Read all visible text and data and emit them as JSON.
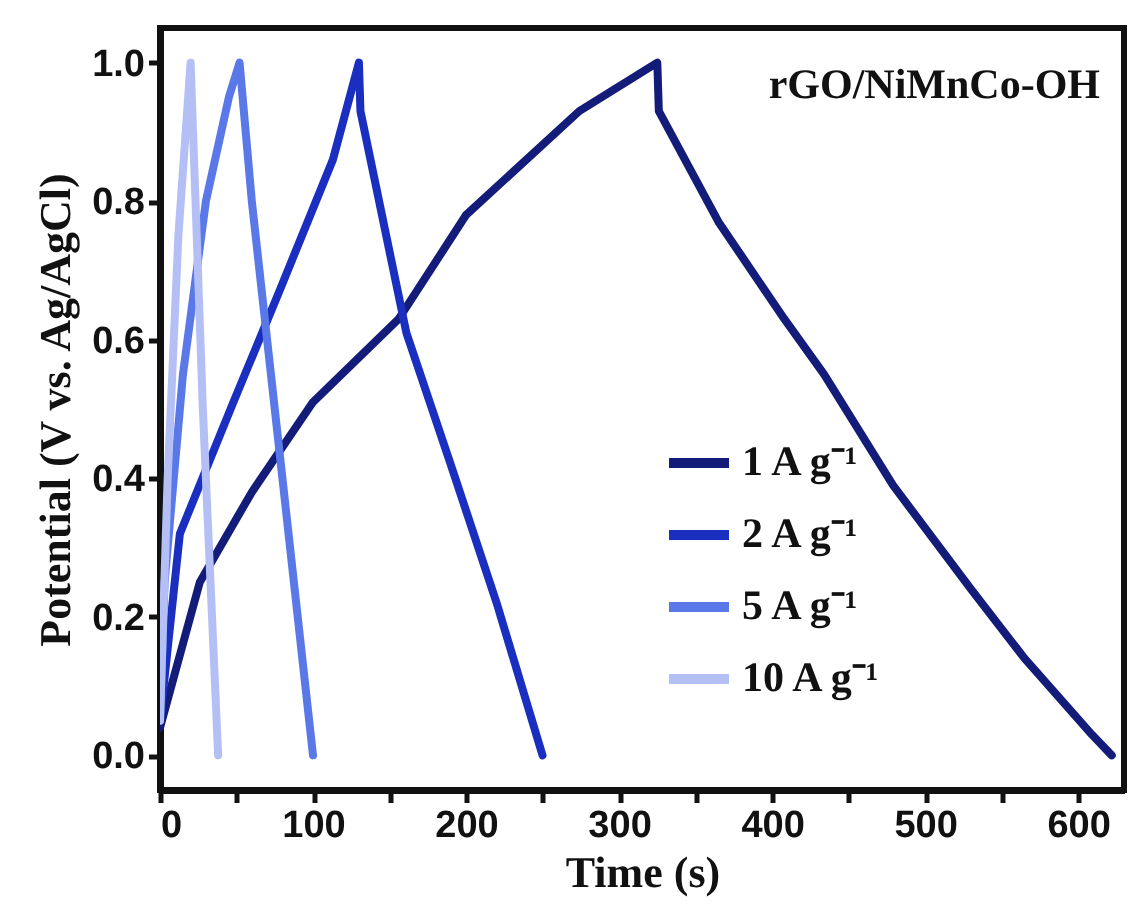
{
  "chart_data": {
    "type": "line",
    "xlabel": "Time (s)",
    "ylabel": "Potential (V vs. Ag/AgCl)",
    "annotations": [
      "rGO/NiMnCo-OH"
    ],
    "xlim": [
      0,
      630
    ],
    "ylim": [
      -0.05,
      1.05
    ],
    "xticks": [
      0,
      {
        "value": 50,
        "label": null
      },
      100,
      {
        "value": 150,
        "label": null
      },
      200,
      {
        "value": 250,
        "label": null
      },
      300,
      {
        "value": 350,
        "label": null
      },
      400,
      {
        "value": 450,
        "label": null
      },
      500,
      {
        "value": 550,
        "label": null
      },
      600
    ],
    "yticks": [
      {
        "value": 0,
        "label": "0.0"
      },
      0.2,
      0.4,
      0.6,
      0.8,
      {
        "value": 1,
        "label": "1.0"
      }
    ],
    "grid": false,
    "legend": "right",
    "marker": "none",
    "line_style": "solid",
    "series": [
      {
        "name": "1 A g⁻¹",
        "color": "#141c7a",
        "x": [
          0,
          26,
          60,
          100,
          156,
          200,
          274,
          325,
          326,
          365,
          408,
          434,
          479,
          530,
          565,
          609,
          622
        ],
        "values": [
          0.04,
          0.25,
          0.38,
          0.51,
          0.63,
          0.78,
          0.93,
          1.0,
          0.93,
          0.77,
          0.63,
          0.55,
          0.39,
          0.24,
          0.14,
          0.03,
          0.0
        ]
      },
      {
        "name": "2 A g⁻¹",
        "color": "#1a2fc0",
        "x": [
          0,
          13,
          48,
          78,
          113,
          130,
          131,
          161,
          190,
          220,
          250
        ],
        "values": [
          0.05,
          0.32,
          0.51,
          0.67,
          0.86,
          1.0,
          0.93,
          0.61,
          0.42,
          0.22,
          0.0
        ]
      },
      {
        "name": "5 A g⁻¹",
        "color": "#5a78e8",
        "x": [
          0,
          3,
          15,
          30,
          45,
          52,
          60,
          80,
          100
        ],
        "values": [
          0.05,
          0.25,
          0.55,
          0.8,
          0.95,
          1.0,
          0.8,
          0.4,
          0.0
        ]
      },
      {
        "name": "10 A g⁻¹",
        "color": "#b4c0f5",
        "x": [
          0,
          5,
          12,
          20,
          28,
          38
        ],
        "values": [
          0.05,
          0.4,
          0.75,
          1.0,
          0.5,
          0.0
        ]
      }
    ]
  }
}
